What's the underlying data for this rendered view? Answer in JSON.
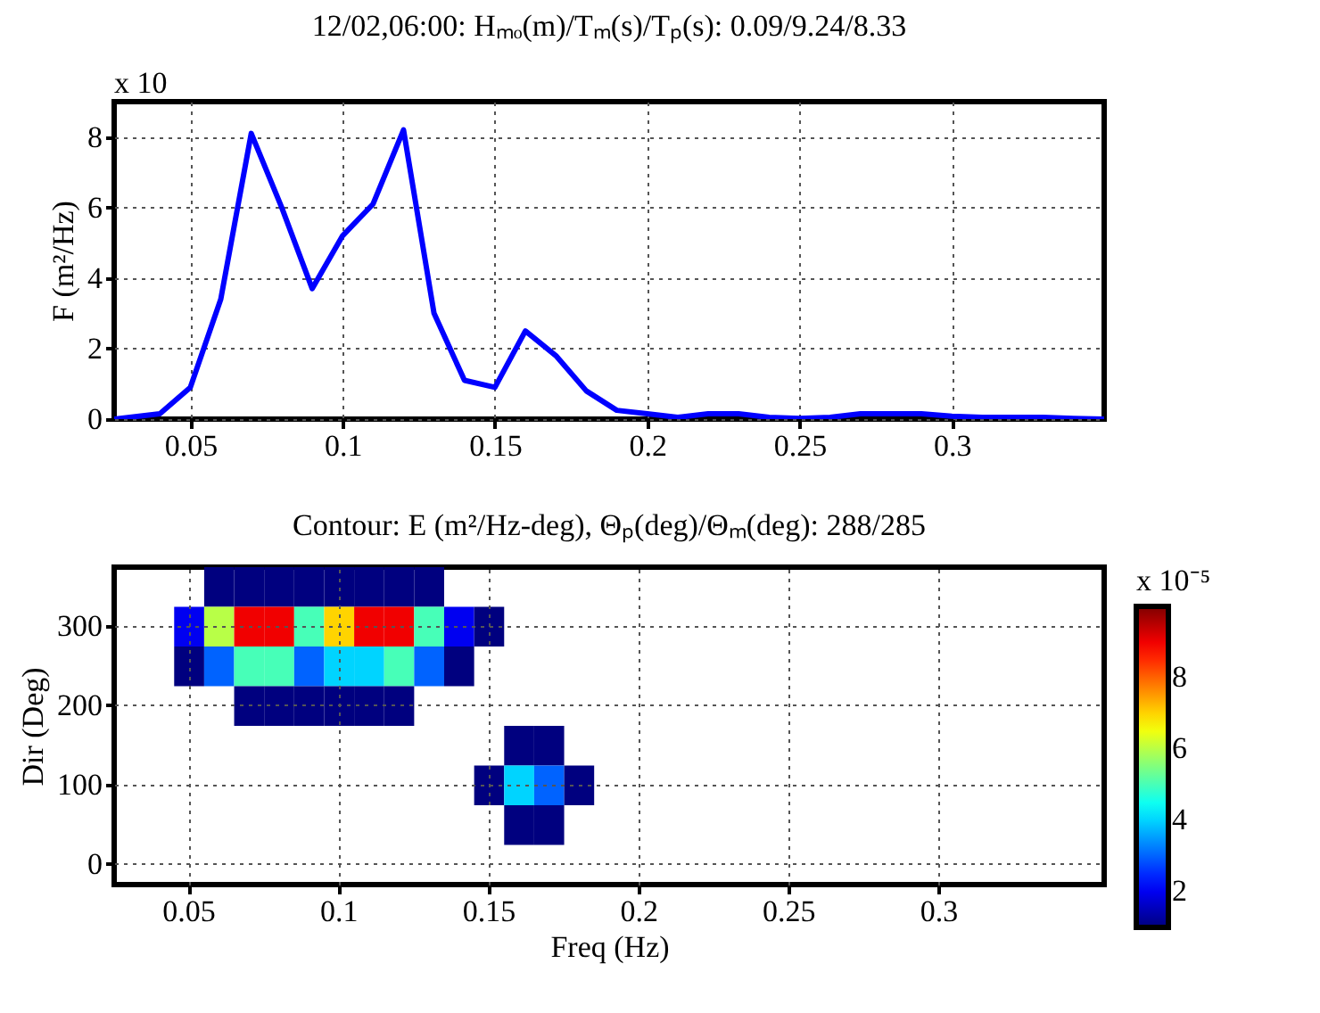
{
  "chart_data": [
    {
      "type": "line",
      "title": "12/02,06:00: Hₘₒ(m)/Tₘ(s)/Tₚ(s): 0.09/9.24/8.33",
      "ylabel": "F (m²/Hz)",
      "annotations": [
        "x 10"
      ],
      "x": [
        0.025,
        0.04,
        0.05,
        0.06,
        0.07,
        0.08,
        0.09,
        0.1,
        0.11,
        0.12,
        0.13,
        0.14,
        0.15,
        0.16,
        0.17,
        0.18,
        0.19,
        0.2,
        0.21,
        0.22,
        0.23,
        0.24,
        0.25,
        0.26,
        0.27,
        0.28,
        0.29,
        0.3,
        0.31,
        0.32,
        0.33,
        0.34,
        0.35
      ],
      "series": [
        {
          "color": "#0000ff",
          "values": [
            0,
            0.15,
            0.9,
            3.4,
            8.1,
            6.0,
            3.7,
            5.2,
            6.1,
            8.2,
            3.0,
            1.1,
            0.9,
            2.5,
            1.8,
            0.8,
            0.25,
            0.15,
            0.05,
            0.15,
            0.15,
            0.05,
            0.02,
            0.05,
            0.15,
            0.15,
            0.15,
            0.08,
            0.05,
            0.05,
            0.05,
            0.02,
            0
          ]
        }
      ],
      "xlim": [
        0.025,
        0.35
      ],
      "xticks": [
        0.05,
        0.1,
        0.15,
        0.2,
        0.25,
        0.3
      ],
      "ylim": [
        0,
        9
      ],
      "yticks": [
        0,
        2,
        4,
        6,
        8
      ],
      "grid": true
    },
    {
      "type": "heatmap",
      "title": "Contour: E (m²/Hz-deg), Θₚ(deg)/Θₘ(deg): 288/285",
      "xlabel": "Freq (Hz)",
      "ylabel": "Dir (Deg)",
      "clabel": "x 10⁻⁵",
      "categories": [
        null,
        null,
        "0.05",
        null,
        null,
        null,
        null,
        "0.1",
        null,
        null,
        null,
        null,
        "0.15",
        null,
        null,
        null,
        null,
        "0.2",
        null,
        null,
        null,
        null,
        "0.25",
        null,
        null,
        null,
        null,
        "0.3",
        null,
        null,
        null,
        null,
        null
      ],
      "y_categories": [
        null,
        "300",
        null,
        "200",
        null,
        "100",
        null,
        "0"
      ],
      "cells": [
        [
          null,
          null,
          null,
          1,
          1,
          1,
          1,
          1,
          1,
          1,
          1,
          null,
          null,
          null,
          null,
          null,
          null,
          null,
          null,
          null,
          null,
          null,
          null,
          null,
          null,
          null,
          null,
          null,
          null,
          null,
          null,
          null,
          null
        ],
        [
          null,
          null,
          2,
          6,
          9,
          9,
          5,
          7,
          9,
          9,
          5,
          2,
          1,
          null,
          null,
          null,
          null,
          null,
          null,
          null,
          null,
          null,
          null,
          null,
          null,
          null,
          null,
          null,
          null,
          null,
          null,
          null,
          null
        ],
        [
          null,
          null,
          1,
          3,
          5,
          5,
          3,
          4,
          4,
          5,
          3,
          1,
          null,
          null,
          null,
          null,
          null,
          null,
          null,
          null,
          null,
          null,
          null,
          null,
          null,
          null,
          null,
          null,
          null,
          null,
          null,
          null,
          null
        ],
        [
          null,
          null,
          null,
          null,
          1,
          1,
          1,
          1,
          1,
          1,
          null,
          null,
          null,
          null,
          null,
          null,
          null,
          null,
          null,
          null,
          null,
          null,
          null,
          null,
          null,
          null,
          null,
          null,
          null,
          null,
          null,
          null,
          null
        ],
        [
          null,
          null,
          null,
          null,
          null,
          null,
          null,
          null,
          null,
          null,
          null,
          null,
          null,
          1,
          1,
          null,
          null,
          null,
          null,
          null,
          null,
          null,
          null,
          null,
          null,
          null,
          null,
          null,
          null,
          null,
          null,
          null,
          null
        ],
        [
          null,
          null,
          null,
          null,
          null,
          null,
          null,
          null,
          null,
          null,
          null,
          null,
          1,
          4,
          3,
          1,
          null,
          null,
          null,
          null,
          null,
          null,
          null,
          null,
          null,
          null,
          null,
          null,
          null,
          null,
          null,
          null,
          null
        ],
        [
          null,
          null,
          null,
          null,
          null,
          null,
          null,
          null,
          null,
          null,
          null,
          null,
          null,
          1,
          1,
          null,
          null,
          null,
          null,
          null,
          null,
          null,
          null,
          null,
          null,
          null,
          null,
          null,
          null,
          null,
          null,
          null,
          null
        ],
        [
          null,
          null,
          null,
          null,
          null,
          null,
          null,
          null,
          null,
          null,
          null,
          null,
          null,
          null,
          null,
          null,
          null,
          null,
          null,
          null,
          null,
          null,
          null,
          null,
          null,
          null,
          null,
          null,
          null,
          null,
          null,
          null,
          null
        ]
      ],
      "clim": [
        1,
        10
      ],
      "cticks": [
        2,
        4,
        6,
        8
      ],
      "grid": true
    }
  ]
}
